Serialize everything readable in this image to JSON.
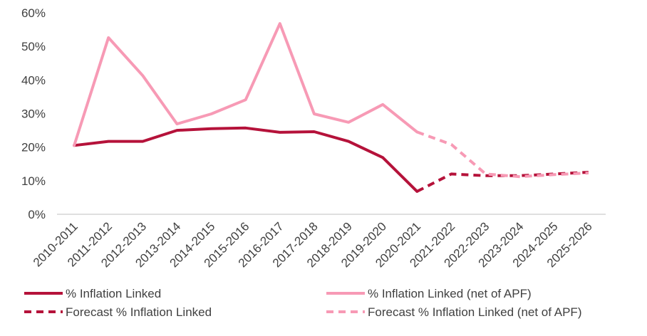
{
  "chart_data": {
    "type": "line",
    "title": "",
    "xlabel": "",
    "ylabel": "",
    "ylim": [
      0,
      60
    ],
    "yticks": [
      0,
      10,
      20,
      30,
      40,
      50,
      60
    ],
    "ytick_labels": [
      "0%",
      "10%",
      "20%",
      "30%",
      "40%",
      "50%",
      "60%"
    ],
    "categories": [
      "2010-2011",
      "2011-2012",
      "2012-2013",
      "2013-2014",
      "2014-2015",
      "2015-2016",
      "2016-2017",
      "2017-2018",
      "2018-2019",
      "2019-2020",
      "2020-2021",
      "2021-2022",
      "2022-2023",
      "2023-2024",
      "2024-2025",
      "2025-2026"
    ],
    "grid": false,
    "legend_position": "bottom",
    "series": [
      {
        "name": "% Inflation Linked",
        "color": "#b5123a",
        "style": "solid",
        "values": [
          20.5,
          21.7,
          21.7,
          25.0,
          25.5,
          25.7,
          24.4,
          24.6,
          21.7,
          16.9,
          6.8,
          null,
          null,
          null,
          null,
          null
        ]
      },
      {
        "name": "% Inflation Linked (net of APF)",
        "color": "#f79ab5",
        "style": "solid",
        "values": [
          20.5,
          52.6,
          41.3,
          26.9,
          29.9,
          34.1,
          56.8,
          29.9,
          27.4,
          32.7,
          24.5,
          null,
          null,
          null,
          null,
          null
        ]
      },
      {
        "name": "Forecast % Inflation Linked",
        "color": "#b5123a",
        "style": "dashed",
        "values": [
          null,
          null,
          null,
          null,
          null,
          null,
          null,
          null,
          null,
          null,
          6.8,
          12.0,
          11.5,
          11.5,
          12.0,
          12.5
        ]
      },
      {
        "name": "Forecast % Inflation Linked (net of APF)",
        "color": "#f79ab5",
        "style": "dashed",
        "values": [
          null,
          null,
          null,
          null,
          null,
          null,
          null,
          null,
          null,
          null,
          24.5,
          20.8,
          12.0,
          11.2,
          11.8,
          12.3
        ]
      }
    ]
  }
}
